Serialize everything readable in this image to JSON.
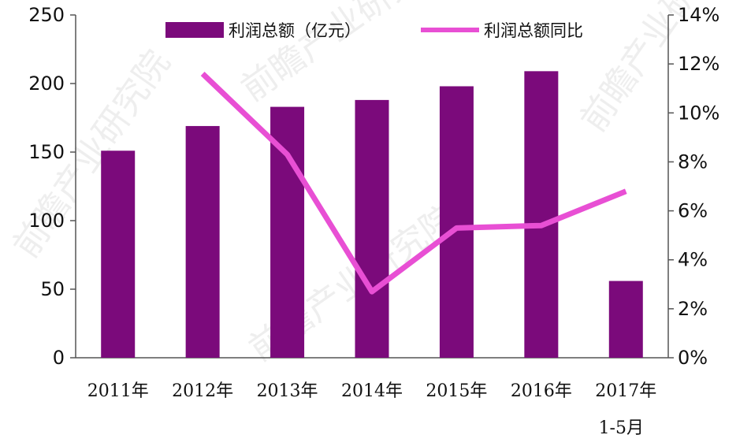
{
  "chart_data": {
    "type": "bar",
    "categories": [
      "2011年",
      "2012年",
      "2013年",
      "2014年",
      "2015年",
      "2016年",
      "2017年"
    ],
    "category_sublabels": [
      "",
      "",
      "",
      "",
      "",
      "",
      "1-5月"
    ],
    "series": [
      {
        "name": "利润总额（亿元）",
        "type": "bar",
        "axis": "left",
        "color": "#7b0a7b",
        "values": [
          151,
          169,
          183,
          188,
          198,
          209,
          56
        ]
      },
      {
        "name": "利润总额同比",
        "type": "line",
        "axis": "right",
        "color": "#e84fd4",
        "values": [
          null,
          11.6,
          8.3,
          2.7,
          5.3,
          5.4,
          6.8
        ]
      }
    ],
    "y_left": {
      "ylim": [
        0,
        250
      ],
      "ticks": [
        "0",
        "50",
        "100",
        "150",
        "200",
        "250"
      ]
    },
    "y_right": {
      "ylim": [
        0,
        14
      ],
      "ticks": [
        "0%",
        "2%",
        "4%",
        "6%",
        "8%",
        "10%",
        "12%",
        "14%"
      ]
    },
    "grid": false,
    "legend_position": "top"
  },
  "watermark": {
    "text": "前瞻产业研究院"
  }
}
